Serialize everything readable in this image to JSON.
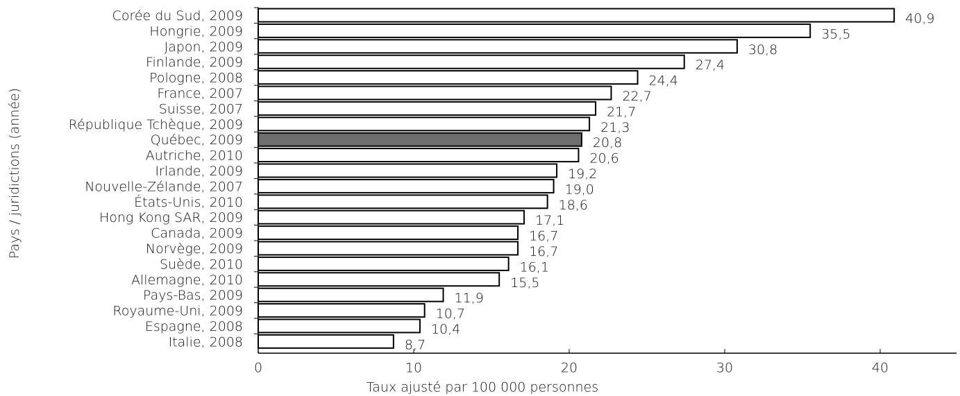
{
  "chart_data": {
    "type": "bar",
    "orientation": "horizontal",
    "title": "",
    "xlabel": "Taux ajusté par 100 000 personnes",
    "ylabel": "Pays / juridictions (année)",
    "xlim": [
      0,
      45
    ],
    "xticks": [
      0,
      10,
      20,
      30,
      40
    ],
    "grid": false,
    "categories": [
      "Corée du Sud, 2009",
      "Hongrie, 2009",
      "Japon, 2009",
      "Finlande, 2009",
      "Pologne, 2008",
      "France, 2007",
      "Suisse, 2007",
      "République Tchèque, 2009",
      "Québec, 2009",
      "Autriche, 2010",
      "Irlande, 2009",
      "Nouvelle-Zélande, 2007",
      "États-Unis, 2010",
      "Hong Kong SAR, 2009",
      "Canada, 2009",
      "Norvège, 2009",
      "Suède, 2010",
      "Allemagne, 2010",
      "Pays-Bas, 2009",
      "Royaume-Uni, 2009",
      "Espagne, 2008",
      "Italie, 2008"
    ],
    "values": [
      40.9,
      35.5,
      30.8,
      27.4,
      24.4,
      22.7,
      21.7,
      21.3,
      20.8,
      20.6,
      19.2,
      19.0,
      18.6,
      17.1,
      16.7,
      16.7,
      16.1,
      15.5,
      11.9,
      10.7,
      10.4,
      8.7
    ],
    "value_labels": [
      "40,9",
      "35,5",
      "30,8",
      "27,4",
      "24,4",
      "22,7",
      "21,7",
      "21,3",
      "20,8",
      "20,6",
      "19,2",
      "19,0",
      "18,6",
      "17,1",
      "16,7",
      "16,7",
      "16,1",
      "15,5",
      "11,9",
      "10,7",
      "10,4",
      "8,7"
    ],
    "highlight_category": "Québec, 2009",
    "colors": {
      "bar_fill": "#ffffff",
      "highlight_fill": "#6e6e6e",
      "bar_stroke": "#000000"
    }
  }
}
